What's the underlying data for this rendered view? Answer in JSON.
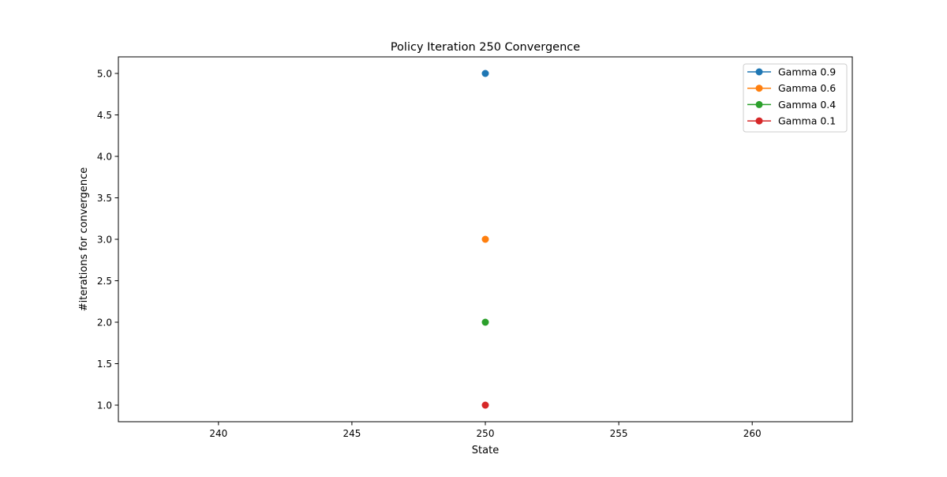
{
  "chart_data": {
    "type": "line",
    "title": "Policy Iteration 250  Convergence",
    "xlabel": "State",
    "ylabel": "#iterations for convergence",
    "xlim": [
      236.25,
      263.75
    ],
    "ylim": [
      0.8,
      5.2
    ],
    "xticks": [
      240,
      245,
      250,
      255,
      260
    ],
    "xtick_labels": [
      "240",
      "245",
      "250",
      "255",
      "260"
    ],
    "yticks": [
      1.0,
      1.5,
      2.0,
      2.5,
      3.0,
      3.5,
      4.0,
      4.5,
      5.0
    ],
    "ytick_labels": [
      "1.0",
      "1.5",
      "2.0",
      "2.5",
      "3.0",
      "3.5",
      "4.0",
      "4.5",
      "5.0"
    ],
    "grid": false,
    "legend_position": "upper right",
    "series": [
      {
        "name": "Gamma 0.9",
        "color": "#1f77b4",
        "x": [
          250
        ],
        "y": [
          5
        ]
      },
      {
        "name": "Gamma 0.6",
        "color": "#ff7f0e",
        "x": [
          250
        ],
        "y": [
          3
        ]
      },
      {
        "name": "Gamma 0.4",
        "color": "#2ca02c",
        "x": [
          250
        ],
        "y": [
          2
        ]
      },
      {
        "name": "Gamma 0.1",
        "color": "#d62728",
        "x": [
          250
        ],
        "y": [
          1
        ]
      }
    ]
  }
}
